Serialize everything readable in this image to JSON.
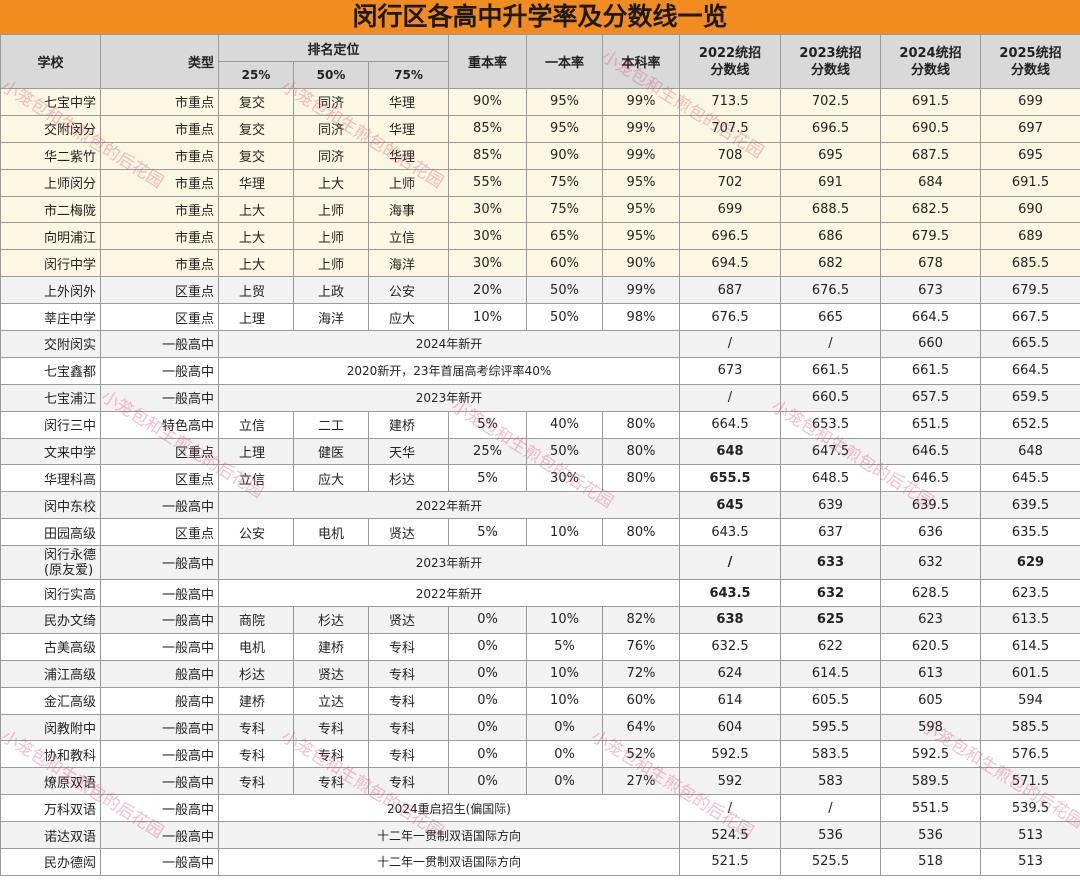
{
  "title": "闵行区各高中升学率及分数线一览",
  "header": {
    "school": "学校",
    "type": "类型",
    "ranking": "排名定位",
    "p25": "25%",
    "p50": "50%",
    "p75": "75%",
    "key_rate": "重本率",
    "tier1_rate": "一本率",
    "undergrad_rate": "本科率",
    "y2022": "2022统招分数线",
    "y2023": "2023统招分数线",
    "y2024": "2024统招分数线",
    "y2025": "2025统招分数线"
  },
  "watermark": "小笼包和生煎包的后花园",
  "rows": [
    {
      "school": "七宝中学",
      "type": "市重点",
      "p25": "复交",
      "p50": "同济",
      "p75": "华理",
      "key": "90%",
      "t1": "95%",
      "ug": "99%",
      "s2022": "713.5",
      "s2023": "702.5",
      "s2024": "691.5",
      "s2025": "699"
    },
    {
      "school": "交附闵分",
      "type": "市重点",
      "p25": "复交",
      "p50": "同济",
      "p75": "华理",
      "key": "85%",
      "t1": "95%",
      "ug": "99%",
      "s2022": "707.5",
      "s2023": "696.5",
      "s2024": "690.5",
      "s2025": "697"
    },
    {
      "school": "华二紫竹",
      "type": "市重点",
      "p25": "复交",
      "p50": "同济",
      "p75": "华理",
      "key": "85%",
      "t1": "90%",
      "ug": "99%",
      "s2022": "708",
      "s2023": "695",
      "s2024": "687.5",
      "s2025": "695"
    },
    {
      "school": "上师闵分",
      "type": "市重点",
      "p25": "华理",
      "p50": "上大",
      "p75": "上师",
      "key": "55%",
      "t1": "75%",
      "ug": "95%",
      "s2022": "702",
      "s2023": "691",
      "s2024": "684",
      "s2025": "691.5"
    },
    {
      "school": "市二梅陇",
      "type": "市重点",
      "p25": "上大",
      "p50": "上师",
      "p75": "海事",
      "key": "30%",
      "t1": "75%",
      "ug": "95%",
      "s2022": "699",
      "s2023": "688.5",
      "s2024": "682.5",
      "s2025": "690"
    },
    {
      "school": "向明浦江",
      "type": "市重点",
      "p25": "上大",
      "p50": "上师",
      "p75": "立信",
      "key": "30%",
      "t1": "65%",
      "ug": "95%",
      "s2022": "696.5",
      "s2023": "686",
      "s2024": "679.5",
      "s2025": "689"
    },
    {
      "school": "闵行中学",
      "type": "市重点",
      "p25": "上大",
      "p50": "上师",
      "p75": "海洋",
      "key": "30%",
      "t1": "60%",
      "ug": "90%",
      "s2022": "694.5",
      "s2023": "682",
      "s2024": "678",
      "s2025": "685.5"
    },
    {
      "school": "上外闵外",
      "type": "区重点",
      "p25": "上贸",
      "p50": "上政",
      "p75": "公安",
      "key": "20%",
      "t1": "50%",
      "ug": "99%",
      "s2022": "687",
      "s2023": "676.5",
      "s2024": "673",
      "s2025": "679.5"
    },
    {
      "school": "莘庄中学",
      "type": "区重点",
      "p25": "上理",
      "p50": "海洋",
      "p75": "应大",
      "key": "10%",
      "t1": "50%",
      "ug": "98%",
      "s2022": "676.5",
      "s2023": "665",
      "s2024": "664.5",
      "s2025": "667.5"
    },
    {
      "school": "交附闵实",
      "type": "一般高中",
      "note": "2024年新开",
      "s2022": "/",
      "s2023": "/",
      "s2024": "660",
      "s2025": "665.5"
    },
    {
      "school": "七宝鑫都",
      "type": "一般高中",
      "note": "2020新开，23年首届高考综评率40%",
      "s2022": "673",
      "s2023": "661.5",
      "s2024": "661.5",
      "s2025": "664.5"
    },
    {
      "school": "七宝浦江",
      "type": "一般高中",
      "note": "2023年新开",
      "s2022": "/",
      "s2023": "660.5",
      "s2024": "657.5",
      "s2025": "659.5"
    },
    {
      "school": "闵行三中",
      "type": "特色高中",
      "p25": "立信",
      "p50": "二工",
      "p75": "建桥",
      "key": "5%",
      "t1": "40%",
      "ug": "80%",
      "s2022": "664.5",
      "s2023": "653.5",
      "s2024": "651.5",
      "s2025": "652.5"
    },
    {
      "school": "文来中学",
      "type": "区重点",
      "p25": "上理",
      "p50": "健医",
      "p75": "天华",
      "key": "25%",
      "t1": "50%",
      "ug": "80%",
      "s2022": "648",
      "s2023": "647.5",
      "s2024": "646.5",
      "s2025": "648",
      "b2022": true
    },
    {
      "school": "华理科高",
      "type": "区重点",
      "p25": "立信",
      "p50": "应大",
      "p75": "杉达",
      "key": "5%",
      "t1": "30%",
      "ug": "80%",
      "s2022": "655.5",
      "s2023": "648.5",
      "s2024": "646.5",
      "s2025": "645.5",
      "b2022": true
    },
    {
      "school": "闵中东校",
      "type": "一般高中",
      "note": "2022年新开",
      "s2022": "645",
      "s2023": "639",
      "s2024": "639.5",
      "s2025": "639.5",
      "b2022": true
    },
    {
      "school": "田园高级",
      "type": "区重点",
      "p25": "公安",
      "p50": "电机",
      "p75": "贤达",
      "key": "5%",
      "t1": "10%",
      "ug": "80%",
      "s2022": "643.5",
      "s2023": "637",
      "s2024": "636",
      "s2025": "635.5"
    },
    {
      "school": "闵行永德\n(原友爱)",
      "type": "一般高中",
      "note": "2023年新开",
      "s2022": "/",
      "s2023": "633",
      "s2024": "632",
      "s2025": "629",
      "b2022": true,
      "b2023": true,
      "b2025": true,
      "tall": true
    },
    {
      "school": "闵行实高",
      "type": "一般高中",
      "note": "2022年新开",
      "s2022": "643.5",
      "s2023": "632",
      "s2024": "628.5",
      "s2025": "623.5",
      "b2022": true,
      "b2023": true
    },
    {
      "school": "民办文绮",
      "type": "一般高中",
      "p25": "商院",
      "p50": "杉达",
      "p75": "贤达",
      "key": "0%",
      "t1": "10%",
      "ug": "82%",
      "s2022": "638",
      "s2023": "625",
      "s2024": "623",
      "s2025": "613.5",
      "b2022": true,
      "b2023": true
    },
    {
      "school": "古美高级",
      "type": "一般高中",
      "p25": "电机",
      "p50": "建桥",
      "p75": "专科",
      "key": "0%",
      "t1": "5%",
      "ug": "76%",
      "s2022": "632.5",
      "s2023": "622",
      "s2024": "620.5",
      "s2025": "614.5"
    },
    {
      "school": "浦江高级",
      "type": "般高中",
      "p25": "杉达",
      "p50": "贤达",
      "p75": "专科",
      "key": "0%",
      "t1": "10%",
      "ug": "72%",
      "s2022": "624",
      "s2023": "614.5",
      "s2024": "613",
      "s2025": "601.5"
    },
    {
      "school": "金汇高级",
      "type": "般高中",
      "p25": "建桥",
      "p50": "立达",
      "p75": "专科",
      "key": "0%",
      "t1": "10%",
      "ug": "60%",
      "s2022": "614",
      "s2023": "605.5",
      "s2024": "605",
      "s2025": "594"
    },
    {
      "school": "闵教附中",
      "type": "一般高中",
      "p25": "专科",
      "p50": "专科",
      "p75": "专科",
      "key": "0%",
      "t1": "0%",
      "ug": "64%",
      "s2022": "604",
      "s2023": "595.5",
      "s2024": "598",
      "s2025": "585.5"
    },
    {
      "school": "协和教科",
      "type": "一般高中",
      "p25": "专科",
      "p50": "专科",
      "p75": "专科",
      "key": "0%",
      "t1": "0%",
      "ug": "52%",
      "s2022": "592.5",
      "s2023": "583.5",
      "s2024": "592.5",
      "s2025": "576.5"
    },
    {
      "school": "燎原双语",
      "type": "一般高中",
      "p25": "专科",
      "p50": "专科",
      "p75": "专科",
      "key": "0%",
      "t1": "0%",
      "ug": "27%",
      "s2022": "592",
      "s2023": "583",
      "s2024": "589.5",
      "s2025": "571.5"
    },
    {
      "school": "万科双语",
      "type": "一般高中",
      "note": "2024重启招生(偏国际)",
      "s2022": "/",
      "s2023": "/",
      "s2024": "551.5",
      "s2025": "539.5"
    },
    {
      "school": "诺达双语",
      "type": "一般高中",
      "note": "十二年一贯制双语国际方向",
      "s2022": "524.5",
      "s2023": "536",
      "s2024": "536",
      "s2025": "513"
    },
    {
      "school": "民办德闳",
      "type": "一般高中",
      "note": "十二年一贯制双语国际方向",
      "s2022": "521.5",
      "s2023": "525.5",
      "s2024": "518",
      "s2025": "513"
    }
  ]
}
